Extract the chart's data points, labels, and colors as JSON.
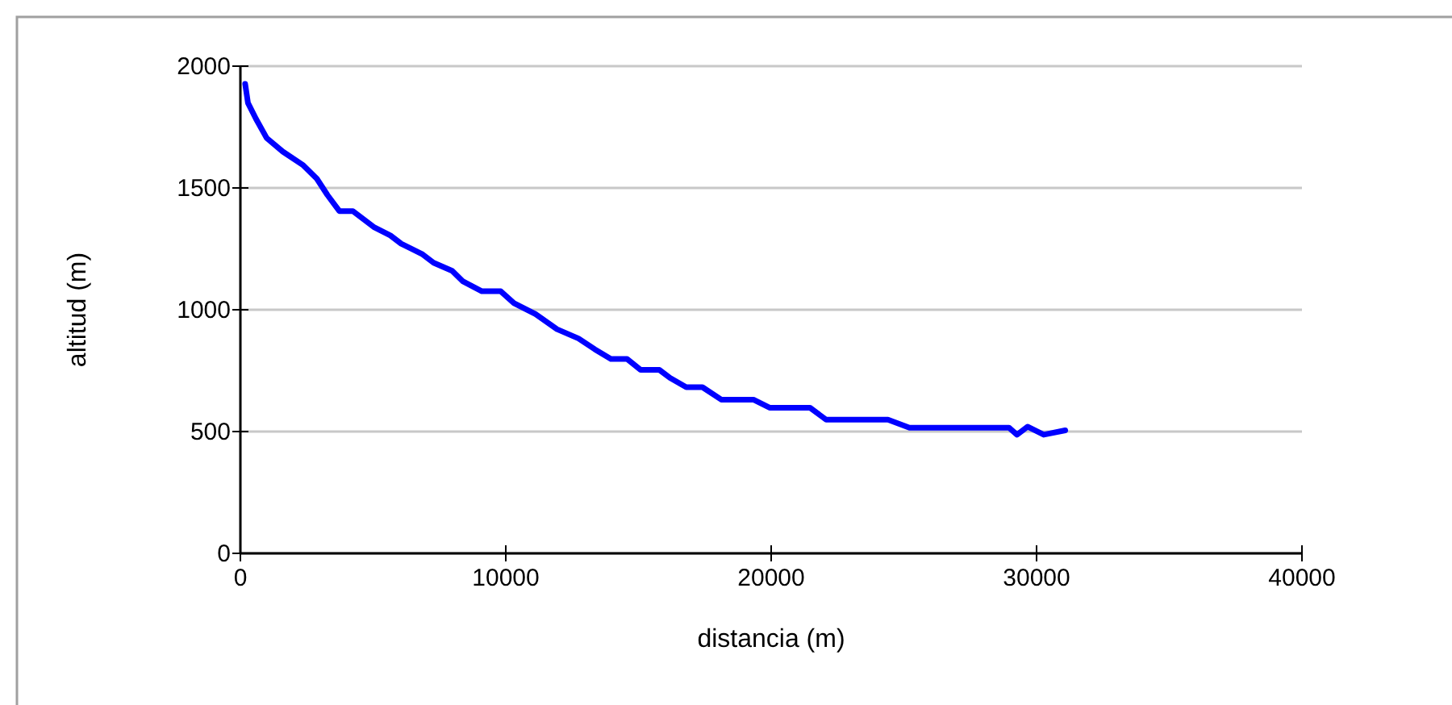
{
  "chart_data": {
    "type": "line",
    "xlabel": "distancia (m)",
    "ylabel": "altitud (m)",
    "xlim": [
      0,
      40000
    ],
    "ylim": [
      0,
      2000
    ],
    "xticks": [
      0,
      10000,
      20000,
      30000,
      40000
    ],
    "yticks": [
      0,
      500,
      1000,
      1500,
      2000
    ],
    "grid": "y",
    "marker": "none",
    "line_style": "solid",
    "series": [
      {
        "color": "#0000ff",
        "x": [
          180,
          285,
          590,
          990,
          1600,
          2370,
          2880,
          3280,
          3730,
          4240,
          5050,
          5650,
          6060,
          6870,
          7280,
          7980,
          8390,
          9100,
          9810,
          10310,
          11120,
          11930,
          12740,
          13350,
          13960,
          14570,
          15080,
          15790,
          16190,
          16800,
          17410,
          18120,
          19330,
          19940,
          21460,
          22070,
          24400,
          25210,
          28960,
          29260,
          29660,
          30270,
          31080
        ],
        "values": [
          1927,
          1849,
          1783,
          1705,
          1649,
          1593,
          1538,
          1471,
          1405,
          1405,
          1338,
          1305,
          1271,
          1227,
          1193,
          1160,
          1116,
          1076,
          1076,
          1027,
          982,
          920,
          882,
          838,
          798,
          798,
          753,
          753,
          720,
          682,
          682,
          631,
          631,
          598,
          598,
          549,
          549,
          516,
          516,
          487,
          520,
          487,
          505
        ]
      }
    ]
  }
}
